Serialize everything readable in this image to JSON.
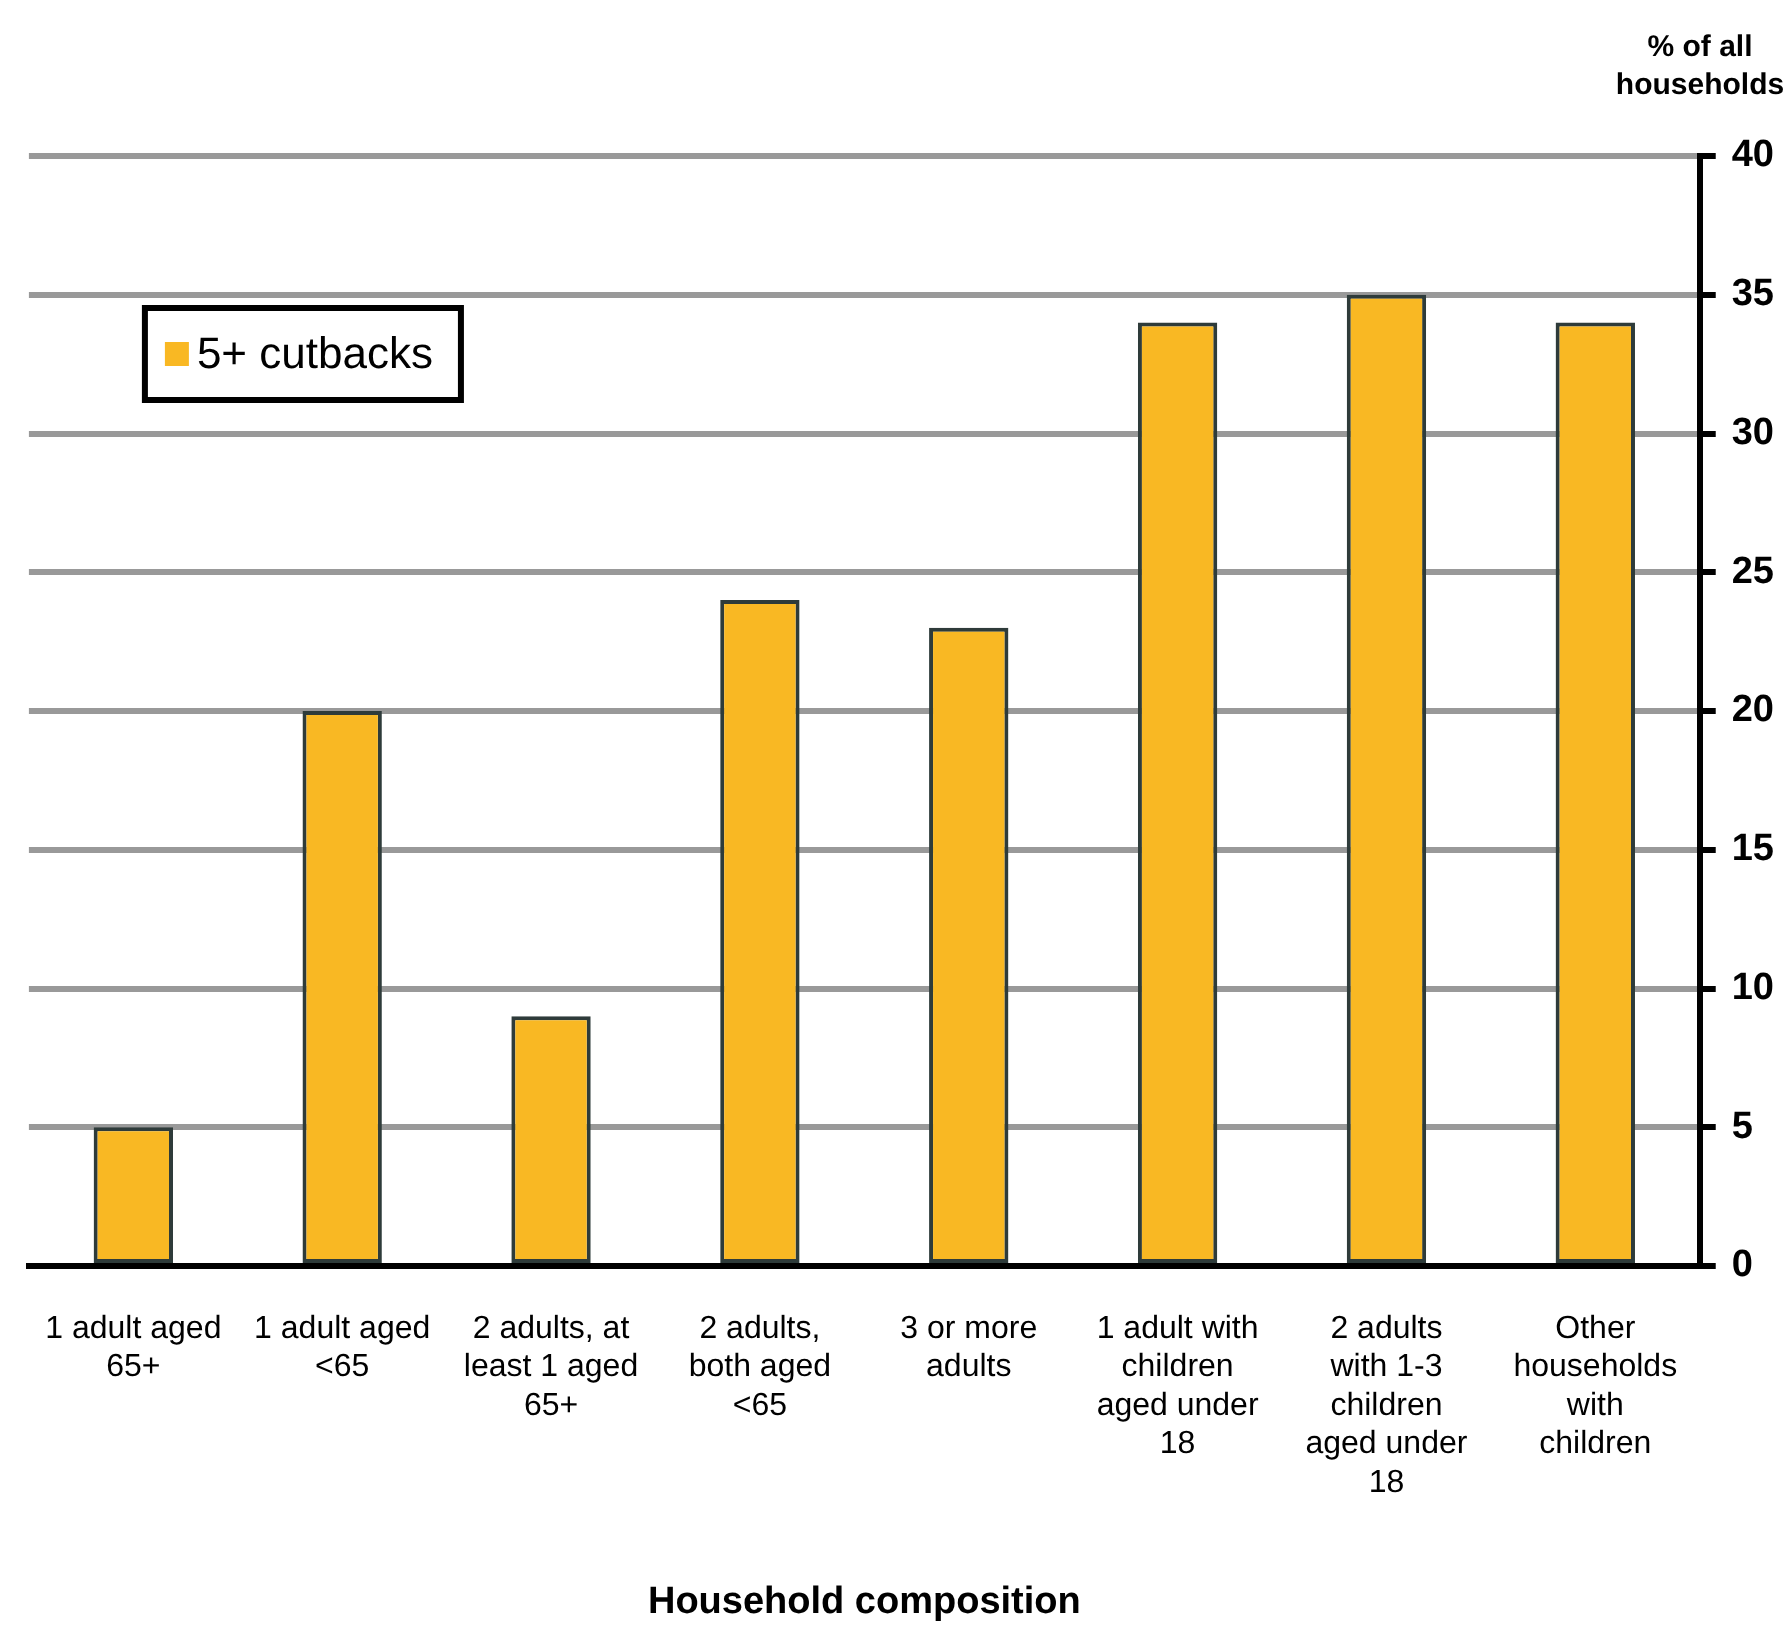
{
  "chart_data": {
    "type": "bar",
    "xlabel": "Household composition",
    "ylabel": "% of all households",
    "categories": [
      "1 adult aged 65+",
      "1 adult aged <65",
      "2 adults, at least 1 aged 65+",
      "2 adults, both aged <65",
      "3 or more adults",
      "1 adult with children aged under 18",
      "2 adults with 1-3 children aged under 18",
      "Other households with children"
    ],
    "series": [
      {
        "name": "5+ cutbacks",
        "color": "#f9b823",
        "values": [
          5,
          20,
          9,
          24,
          23,
          34,
          35,
          34
        ]
      }
    ],
    "ylim": [
      0,
      40
    ],
    "yticks": [
      0,
      5,
      10,
      15,
      20,
      25,
      30,
      35,
      40
    ],
    "grid": "y",
    "legend": "top left"
  }
}
